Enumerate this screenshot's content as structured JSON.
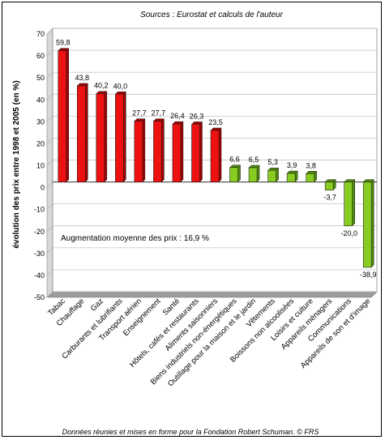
{
  "chart_data": {
    "type": "bar",
    "title": "Sources : Eurostat et calculs de l'auteur",
    "ylabel": "évolution des prix entre 1998 et 2005 (en %)",
    "xlabel": "",
    "ylim": [
      -50,
      70
    ],
    "yticks": [
      70,
      60,
      50,
      40,
      30,
      20,
      10,
      0,
      -10,
      -20,
      -30,
      -40,
      -50
    ],
    "grid": true,
    "annotation": "Augmentation moyenne des prix : 16,9 %",
    "footer": "Données réunies et mises en forme pour la Fondation Robert Schuman. © FRS",
    "categories": [
      "Tabac",
      "Chauffage",
      "Gaz",
      "Carburants et lubrifiants",
      "Transport aérien",
      "Enseignement",
      "Santé",
      "Hôtels, cafés et restaurants",
      "Aliments saisonniers",
      "Biens industriels non-énergétiques",
      "Outillage pour la maison et le jardin",
      "Vêtements",
      "Boissons non alcoolisées",
      "Loisirs et culture",
      "Appareils ménagers",
      "Communications",
      "Appareils de son et d'image"
    ],
    "values": [
      59.8,
      43.8,
      40.2,
      40.0,
      27.7,
      27.7,
      26.4,
      26.3,
      23.5,
      6.6,
      6.5,
      5.3,
      3.9,
      3.8,
      -3.7,
      -20.0,
      -38.9
    ],
    "value_labels": [
      "59,8",
      "43,8",
      "40,2",
      "40,0",
      "27,7",
      "27,7",
      "26,4",
      "26,3",
      "23,5",
      "6,6",
      "6,5",
      "5,3",
      "3,9",
      "3,8",
      "-3,7",
      "-20,0",
      "-38,9"
    ],
    "colors": {
      "red": "#ee1111",
      "red_dark": "#a00000",
      "green": "#88cc22",
      "green_dark": "#4f8a0c"
    }
  }
}
